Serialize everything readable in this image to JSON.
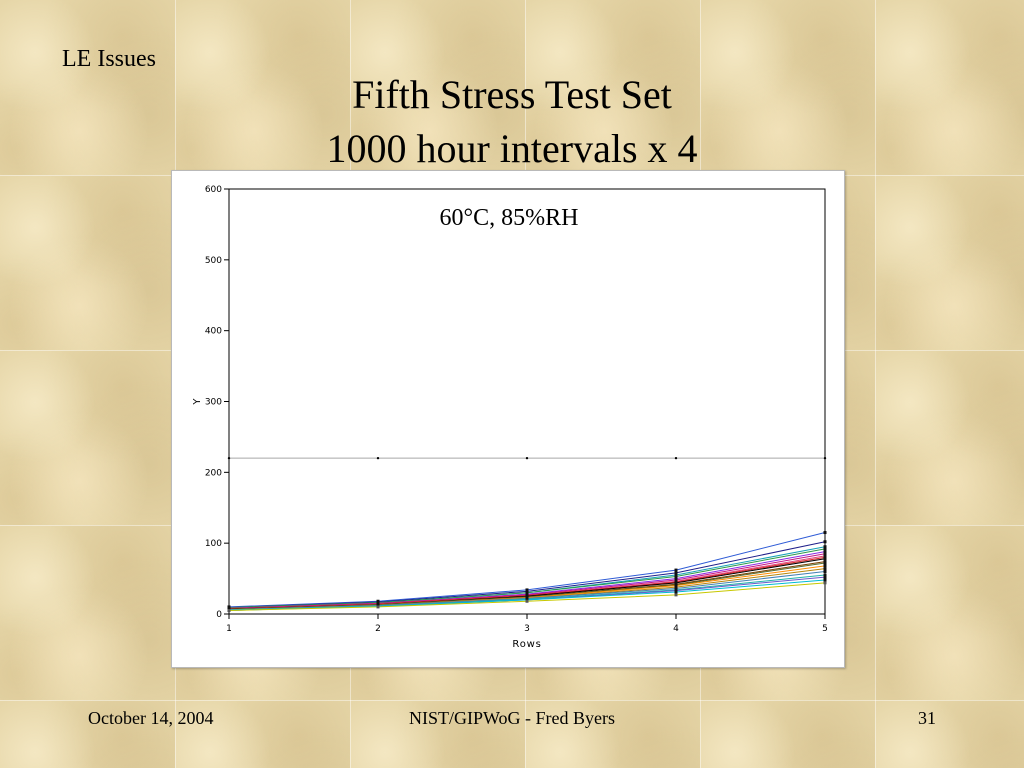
{
  "slide": {
    "section_label": "LE Issues",
    "title_line1": "Fifth Stress Test Set",
    "title_line2": "1000 hour intervals x 4",
    "footer_date": "October 14, 2004",
    "footer_center": "NIST/GIPWoG - Fred Byers",
    "page_number": "31"
  },
  "chart_data": {
    "type": "line",
    "annotation": "60°C, 85%RH",
    "xlabel": "Rows",
    "ylabel": "Y",
    "x": [
      1,
      2,
      3,
      4,
      5
    ],
    "xlim": [
      1,
      5
    ],
    "ylim": [
      0,
      600
    ],
    "yticks": [
      0,
      100,
      200,
      300,
      400,
      500,
      600
    ],
    "reference_line": {
      "y": 220,
      "color": "#a8a8a8"
    },
    "grid": false,
    "legend": "none",
    "series": [
      {
        "color": "#2e5bd6",
        "values": [
          10,
          18,
          34,
          62,
          115
        ]
      },
      {
        "color": "#1f1f8a",
        "values": [
          9,
          17,
          32,
          58,
          102
        ]
      },
      {
        "color": "#17a2b8",
        "values": [
          8,
          16,
          30,
          55,
          95
        ]
      },
      {
        "color": "#2e9a4a",
        "values": [
          9,
          16,
          30,
          53,
          92
        ]
      },
      {
        "color": "#8a2be2",
        "values": [
          8,
          15,
          28,
          50,
          88
        ]
      },
      {
        "color": "#c71585",
        "values": [
          8,
          15,
          27,
          48,
          85
        ]
      },
      {
        "color": "#e0457b",
        "values": [
          7,
          14,
          26,
          46,
          82
        ]
      },
      {
        "color": "#d62828",
        "values": [
          7,
          14,
          26,
          45,
          80
        ]
      },
      {
        "color": "#000000",
        "values": [
          7,
          13,
          25,
          44,
          78
        ]
      },
      {
        "color": "#7b3f00",
        "values": [
          7,
          13,
          24,
          42,
          74
        ]
      },
      {
        "color": "#556b2f",
        "values": [
          6,
          13,
          24,
          41,
          72
        ]
      },
      {
        "color": "#ff8c00",
        "values": [
          6,
          12,
          23,
          40,
          68
        ]
      },
      {
        "color": "#b8860b",
        "values": [
          6,
          12,
          22,
          38,
          64
        ]
      },
      {
        "color": "#4682b4",
        "values": [
          6,
          12,
          22,
          36,
          60
        ]
      },
      {
        "color": "#20b2aa",
        "values": [
          6,
          11,
          21,
          34,
          55
        ]
      },
      {
        "color": "#6a5acd",
        "values": [
          5,
          11,
          20,
          33,
          52
        ]
      },
      {
        "color": "#00bcd4",
        "values": [
          5,
          11,
          20,
          31,
          48
        ]
      },
      {
        "color": "#c8c800",
        "values": [
          5,
          10,
          18,
          27,
          44
        ]
      }
    ]
  }
}
